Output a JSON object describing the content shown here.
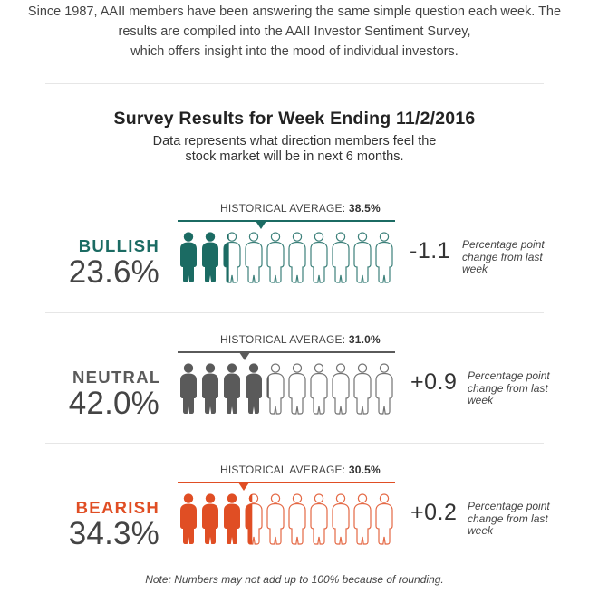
{
  "intro": {
    "lines": [
      "Since 1987, AAII members have been answering the same simple question each week. The",
      "results are compiled into the AAII Investor Sentiment Survey,",
      "which offers insight into the mood of individual investors."
    ]
  },
  "title": "Survey Results for Week Ending 11/2/2016",
  "subtitle": {
    "lines": [
      "Data represents what direction members feel the",
      "stock market will be in next 6 months."
    ]
  },
  "historical_label": "HISTORICAL AVERAGE:",
  "change_note": "Percentage point change from last week",
  "sections": [
    {
      "key": "bullish",
      "label": "BULLISH",
      "value": "23.6%",
      "percent": 23.6,
      "historical_value": "38.5%",
      "historical_percent": 38.5,
      "change": "-1.1",
      "color": "#1b6b63",
      "icon": "person-icon"
    },
    {
      "key": "neutral",
      "label": "NEUTRAL",
      "value": "42.0%",
      "percent": 42.0,
      "historical_value": "31.0%",
      "historical_percent": 31.0,
      "change": "+0.9",
      "color": "#5a5a5a",
      "icon": "person-icon"
    },
    {
      "key": "bearish",
      "label": "BEARISH",
      "value": "34.3%",
      "percent": 34.3,
      "historical_value": "30.5%",
      "historical_percent": 30.5,
      "change": "+0.2",
      "color": "#e04e24",
      "icon": "person-icon"
    }
  ],
  "footnote": "Note: Numbers may not add up to 100% because of rounding."
}
